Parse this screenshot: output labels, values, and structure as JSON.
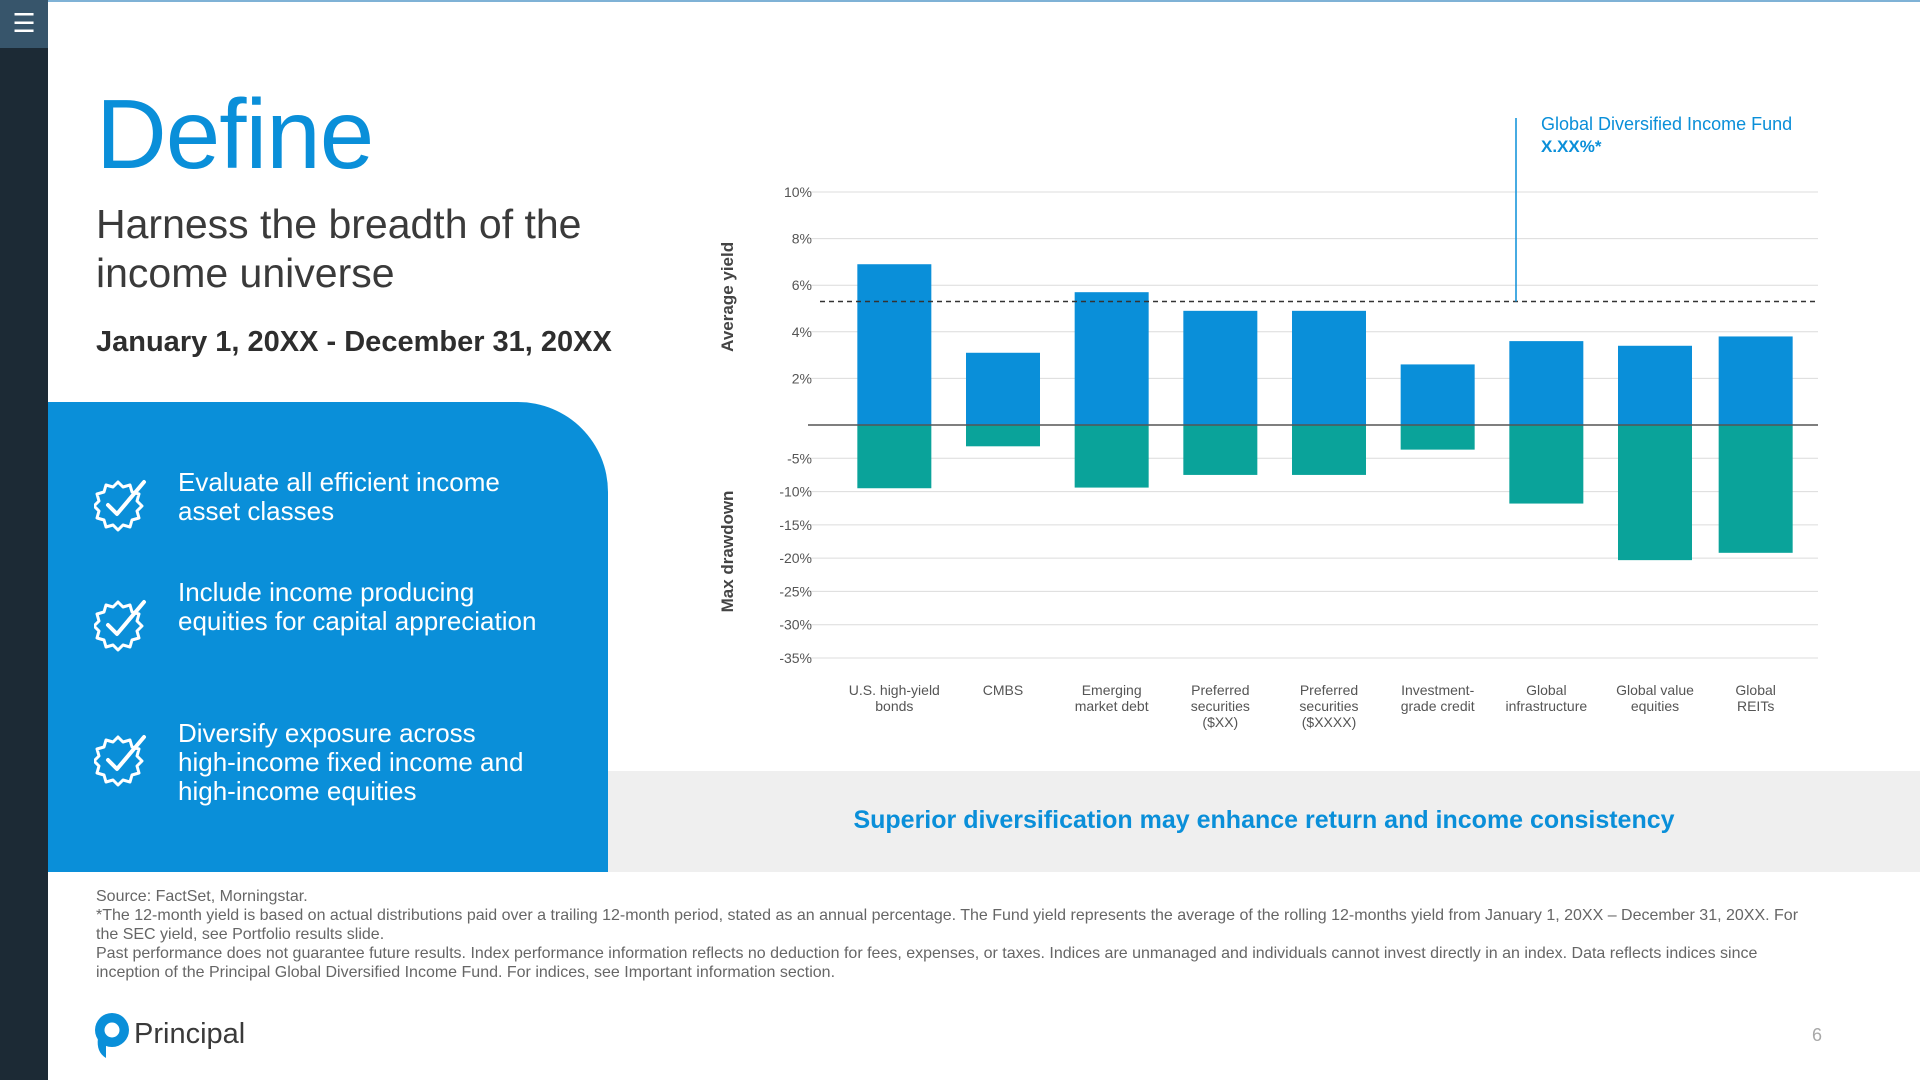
{
  "slide": {
    "title": "Define",
    "subtitle": "Harness the breadth of the income universe",
    "date_range": "January 1, 20XX - December 31, 20XX",
    "bullets": [
      {
        "text": "Evaluate all efficient income asset classes",
        "icon": "badge-check-icon"
      },
      {
        "text": "Include income producing equities for capital appreciation",
        "icon": "badge-check-icon"
      },
      {
        "text": "Diversify exposure across high-income fixed income and high-income equities",
        "icon": "badge-check-icon"
      }
    ],
    "band_text": "Superior diversification may enhance return and income consistency",
    "footnotes": [
      "Source: FactSet, Morningstar.",
      "*The 12-month yield is based on actual distributions paid over a trailing 12-month period, stated as an annual percentage. The Fund yield represents the average of the rolling 12-months yield from January 1, 20XX – December 31, 20XX. For the SEC yield, see Portfolio results slide.",
      "Past performance does not guarantee future results. Index performance information reflects no deduction for fees, expenses, or taxes. Indices are unmanaged and individuals cannot invest directly in an index. Data reflects indices since inception of the Principal Global Diversified Income Fund. For indices, see Important information section."
    ],
    "logo_text": "Principal",
    "page_number": "6",
    "menu_icon": "hamburger-menu-icon"
  },
  "colors": {
    "brand_blue": "#0a8fd9",
    "drawdown_teal": "#0aa39a",
    "rail_dark": "#1c2a35",
    "band_gray": "#efefef"
  },
  "chart_data": {
    "type": "bar",
    "categories": [
      [
        "U.S. high-yield",
        "bonds"
      ],
      [
        "CMBS"
      ],
      [
        "Emerging",
        "market debt"
      ],
      [
        "Preferred",
        "securities",
        "($XX)"
      ],
      [
        "Preferred",
        "securities",
        "($XXXX)"
      ],
      [
        "Investment-",
        "grade credit"
      ],
      [
        "Global",
        "infrastructure"
      ],
      [
        "Global value",
        "equities"
      ],
      [
        "Global",
        "REITs"
      ]
    ],
    "series": [
      {
        "values": [
          6.9,
          3.1,
          5.7,
          4.9,
          4.9,
          2.6,
          3.6,
          3.4,
          3.8
        ],
        "color": "#0a8fd9"
      },
      {
        "values": [
          -9.5,
          -3.2,
          -9.4,
          -7.5,
          -7.5,
          -3.7,
          -11.8,
          -20.3,
          -19.2
        ],
        "color": "#0aa39a"
      }
    ],
    "ylabel_top": "Average yield",
    "ylabel_bottom": "Max drawdown",
    "yield_ticks": [
      "10%",
      "8%",
      "6%",
      "4%",
      "2%"
    ],
    "yield_tick_values": [
      10,
      8,
      6,
      4,
      2
    ],
    "drawdown_ticks": [
      "-5%",
      "-10%",
      "-15%",
      "-20%",
      "-25%",
      "-30%",
      "-35%"
    ],
    "drawdown_tick_values": [
      -5,
      -10,
      -15,
      -20,
      -25,
      -30,
      -35
    ],
    "ylim_yield": [
      0,
      10
    ],
    "ylim_drawdown": [
      -35,
      0
    ],
    "fund_yield_reference": 5.3,
    "annotation": {
      "line1": "Global Diversified Income Fund",
      "line2": "X.XX%*"
    },
    "grid": true
  }
}
